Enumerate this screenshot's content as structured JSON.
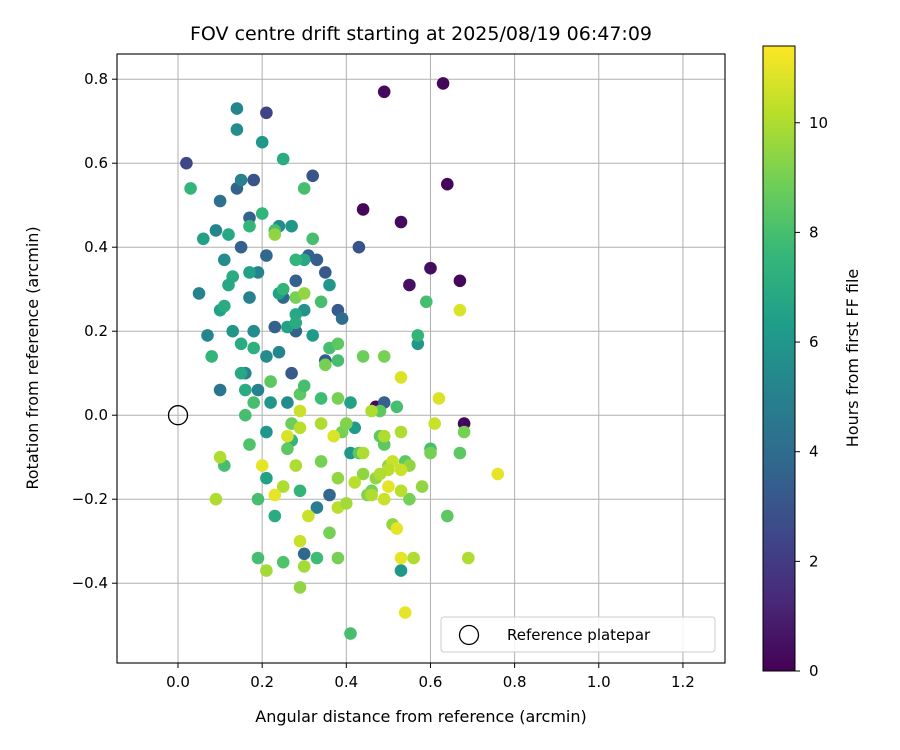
{
  "chart_data": {
    "type": "scatter",
    "title": "FOV centre drift starting at 2025/08/19 06:47:09",
    "xlabel": "Angular distance from reference (arcmin)",
    "ylabel": "Rotation from reference (arcmin)",
    "xlim": [
      -0.145,
      1.3
    ],
    "ylim": [
      -0.59,
      0.86
    ],
    "xticks": [
      0.0,
      0.2,
      0.4,
      0.6,
      0.8,
      1.0,
      1.2
    ],
    "xtick_labels": [
      "0.0",
      "0.2",
      "0.4",
      "0.6",
      "0.8",
      "1.0",
      "1.2"
    ],
    "yticks": [
      -0.4,
      -0.2,
      0.0,
      0.2,
      0.4,
      0.6,
      0.8
    ],
    "ytick_labels": [
      "−0.4",
      "−0.2",
      "0.0",
      "0.2",
      "0.4",
      "0.6",
      "0.8"
    ],
    "grid": true,
    "legend": {
      "placement": "lower-right",
      "entries": [
        "Reference platepar"
      ]
    },
    "colorbar": {
      "label": "Hours from first FF file",
      "colormap": "viridis",
      "range": [
        0,
        11.4
      ],
      "ticks": [
        0,
        2,
        4,
        6,
        8,
        10
      ],
      "tick_labels": [
        "0",
        "2",
        "4",
        "6",
        "8",
        "10"
      ]
    },
    "colormap_stops": [
      "#440154",
      "#482878",
      "#3e4989",
      "#31688e",
      "#26828e",
      "#1f9e89",
      "#35b779",
      "#6ece58",
      "#b5de2b",
      "#fde725"
    ],
    "reference_point": {
      "x": 0.0,
      "y": 0.0
    },
    "series": [
      {
        "points": [
          [
            0.63,
            0.79,
            0.2
          ],
          [
            0.49,
            0.77,
            0.3
          ],
          [
            0.64,
            0.55,
            0.2
          ],
          [
            0.44,
            0.49,
            0.2
          ],
          [
            0.53,
            0.46,
            0.3
          ],
          [
            0.6,
            0.35,
            0.4
          ],
          [
            0.67,
            0.32,
            0.2
          ],
          [
            0.55,
            0.31,
            0.5
          ],
          [
            0.68,
            -0.02,
            0.2
          ],
          [
            0.47,
            0.02,
            0.3
          ],
          [
            0.02,
            0.6,
            2.5
          ],
          [
            0.21,
            0.72,
            2.3
          ],
          [
            0.32,
            0.57,
            3.0
          ],
          [
            0.14,
            0.54,
            3.6
          ],
          [
            0.18,
            0.56,
            3.0
          ],
          [
            0.43,
            0.4,
            3.0
          ],
          [
            0.38,
            0.25,
            3.2
          ],
          [
            0.33,
            0.37,
            3.4
          ],
          [
            0.35,
            0.34,
            3.2
          ],
          [
            0.28,
            0.32,
            3.5
          ],
          [
            0.28,
            0.2,
            3.6
          ],
          [
            0.31,
            0.38,
            3.5
          ],
          [
            0.15,
            0.4,
            3.5
          ],
          [
            0.23,
            0.21,
            3.5
          ],
          [
            0.27,
            0.1,
            3.2
          ],
          [
            0.35,
            0.13,
            3.3
          ],
          [
            0.49,
            0.03,
            3.5
          ],
          [
            0.25,
            0.28,
            3.8
          ],
          [
            0.39,
            0.23,
            4.0
          ],
          [
            0.36,
            -0.19,
            3.8
          ],
          [
            0.27,
            -0.06,
            3.3
          ],
          [
            0.3,
            -0.33,
            3.8
          ],
          [
            0.17,
            0.47,
            3.5
          ],
          [
            0.21,
            0.38,
            3.8
          ],
          [
            0.1,
            0.51,
            4.2
          ],
          [
            0.33,
            -0.22,
            4.8
          ],
          [
            0.14,
            0.73,
            5.2
          ],
          [
            0.14,
            0.68,
            5.5
          ],
          [
            0.2,
            0.65,
            6.0
          ],
          [
            0.15,
            0.56,
            5.0
          ],
          [
            0.05,
            0.29,
            5.0
          ],
          [
            0.07,
            0.19,
            5.2
          ],
          [
            0.11,
            0.37,
            5.5
          ],
          [
            0.09,
            0.44,
            5.2
          ],
          [
            0.17,
            0.28,
            5.0
          ],
          [
            0.19,
            0.34,
            5.1
          ],
          [
            0.24,
            0.45,
            5.5
          ],
          [
            0.27,
            0.45,
            6.0
          ],
          [
            0.1,
            0.06,
            4.5
          ],
          [
            0.13,
            0.2,
            6.0
          ],
          [
            0.16,
            0.1,
            5.0
          ],
          [
            0.18,
            0.2,
            5.5
          ],
          [
            0.21,
            0.14,
            5.5
          ],
          [
            0.19,
            0.06,
            5.0
          ],
          [
            0.24,
            0.15,
            5.2
          ],
          [
            0.26,
            0.03,
            5.5
          ],
          [
            0.22,
            0.03,
            6.0
          ],
          [
            0.21,
            -0.04,
            6.0
          ],
          [
            0.21,
            -0.15,
            6.5
          ],
          [
            0.23,
            -0.24,
            7.0
          ],
          [
            0.53,
            -0.37,
            6.0
          ],
          [
            0.42,
            -0.03,
            6.2
          ],
          [
            0.41,
            -0.09,
            6.0
          ],
          [
            0.57,
            0.17,
            6.0
          ],
          [
            0.41,
            0.03,
            6.5
          ],
          [
            0.36,
            0.31,
            6.0
          ],
          [
            0.3,
            0.25,
            5.8
          ],
          [
            0.32,
            0.19,
            6.2
          ],
          [
            0.26,
            0.21,
            6.5
          ],
          [
            0.28,
            0.24,
            6.8
          ],
          [
            0.28,
            0.22,
            7.0
          ],
          [
            0.24,
            0.29,
            6.5
          ],
          [
            0.3,
            0.37,
            6.8
          ],
          [
            0.25,
            0.61,
            7.0
          ],
          [
            0.06,
            0.42,
            6.5
          ],
          [
            0.12,
            0.43,
            6.8
          ],
          [
            0.17,
            0.34,
            6.5
          ],
          [
            0.13,
            0.33,
            7.0
          ],
          [
            0.12,
            0.31,
            6.8
          ],
          [
            0.1,
            0.25,
            6.5
          ],
          [
            0.11,
            0.26,
            7.0
          ],
          [
            0.08,
            0.14,
            7.5
          ],
          [
            0.15,
            0.17,
            7.0
          ],
          [
            0.15,
            0.1,
            6.8
          ],
          [
            0.16,
            0.06,
            7.0
          ],
          [
            0.18,
            0.16,
            7.2
          ],
          [
            0.25,
            0.3,
            7.5
          ],
          [
            0.28,
            0.37,
            7.5
          ],
          [
            0.32,
            0.42,
            8.0
          ],
          [
            0.3,
            0.54,
            8.0
          ],
          [
            0.03,
            0.54,
            7.5
          ],
          [
            0.2,
            0.48,
            7.5
          ],
          [
            0.17,
            0.45,
            7.5
          ],
          [
            0.23,
            0.44,
            8.0
          ],
          [
            0.34,
            0.27,
            8.0
          ],
          [
            0.57,
            0.19,
            7.5
          ],
          [
            0.59,
            0.27,
            8.0
          ],
          [
            0.36,
            0.16,
            8.0
          ],
          [
            0.38,
            0.17,
            8.5
          ],
          [
            0.34,
            0.04,
            7.8
          ],
          [
            0.38,
            0.13,
            8.0
          ],
          [
            0.18,
            0.03,
            8.0
          ],
          [
            0.17,
            -0.07,
            8.2
          ],
          [
            0.16,
            0.0,
            8.0
          ],
          [
            0.22,
            0.08,
            8.5
          ],
          [
            0.11,
            -0.12,
            8.0
          ],
          [
            0.19,
            -0.2,
            8.0
          ],
          [
            0.19,
            -0.34,
            8.0
          ],
          [
            0.25,
            -0.35,
            8.2
          ],
          [
            0.27,
            -0.06,
            7.5
          ],
          [
            0.29,
            -0.18,
            7.5
          ],
          [
            0.33,
            -0.34,
            7.8
          ],
          [
            0.41,
            -0.52,
            8.0
          ],
          [
            0.52,
            0.02,
            8.0
          ],
          [
            0.48,
            0.01,
            8.5
          ],
          [
            0.48,
            -0.05,
            8.5
          ],
          [
            0.49,
            -0.07,
            8.5
          ],
          [
            0.6,
            -0.08,
            8.0
          ],
          [
            0.43,
            -0.09,
            8.5
          ],
          [
            0.54,
            -0.11,
            8.5
          ],
          [
            0.55,
            -0.2,
            9.0
          ],
          [
            0.36,
            -0.28,
            9.0
          ],
          [
            0.38,
            -0.34,
            9.0
          ],
          [
            0.46,
            -0.18,
            9.0
          ],
          [
            0.64,
            -0.24,
            8.5
          ],
          [
            0.67,
            -0.09,
            8.5
          ],
          [
            0.68,
            -0.04,
            9.0
          ],
          [
            0.6,
            -0.09,
            9.0
          ],
          [
            0.35,
            0.12,
            9.0
          ],
          [
            0.38,
            0.04,
            9.0
          ],
          [
            0.34,
            -0.11,
            9.0
          ],
          [
            0.39,
            -0.04,
            9.0
          ],
          [
            0.4,
            -0.02,
            9.2
          ],
          [
            0.44,
            -0.14,
            9.5
          ],
          [
            0.45,
            -0.19,
            9.2
          ],
          [
            0.47,
            -0.15,
            9.5
          ],
          [
            0.51,
            -0.26,
            9.5
          ],
          [
            0.5,
            -0.12,
            9.5
          ],
          [
            0.55,
            -0.12,
            9.5
          ],
          [
            0.58,
            -0.17,
            9.5
          ],
          [
            0.49,
            0.14,
            9.0
          ],
          [
            0.44,
            0.14,
            8.8
          ],
          [
            0.29,
            0.05,
            8.5
          ],
          [
            0.3,
            0.07,
            8.0
          ],
          [
            0.26,
            -0.08,
            8.5
          ],
          [
            0.27,
            -0.02,
            8.8
          ],
          [
            0.28,
            0.28,
            9.0
          ],
          [
            0.3,
            0.29,
            9.5
          ],
          [
            0.23,
            0.43,
            9.5
          ],
          [
            0.09,
            -0.2,
            10.0
          ],
          [
            0.1,
            -0.1,
            10.0
          ],
          [
            0.21,
            -0.37,
            9.8
          ],
          [
            0.28,
            -0.12,
            10.0
          ],
          [
            0.29,
            -0.3,
            10.5
          ],
          [
            0.31,
            -0.24,
            10.5
          ],
          [
            0.3,
            -0.36,
            9.8
          ],
          [
            0.29,
            -0.41,
            9.5
          ],
          [
            0.38,
            -0.22,
            10.2
          ],
          [
            0.37,
            -0.05,
            10.8
          ],
          [
            0.34,
            -0.02,
            10.0
          ],
          [
            0.25,
            -0.17,
            10.0
          ],
          [
            0.23,
            -0.19,
            11.0
          ],
          [
            0.2,
            -0.12,
            11.0
          ],
          [
            0.26,
            -0.05,
            10.8
          ],
          [
            0.29,
            0.01,
            10.5
          ],
          [
            0.29,
            -0.03,
            10.2
          ],
          [
            0.42,
            -0.16,
            10.2
          ],
          [
            0.46,
            0.01,
            10.0
          ],
          [
            0.49,
            -0.05,
            10.0
          ],
          [
            0.51,
            -0.11,
            10.5
          ],
          [
            0.53,
            -0.13,
            10.5
          ],
          [
            0.53,
            -0.04,
            10.0
          ],
          [
            0.53,
            -0.18,
            10.2
          ],
          [
            0.53,
            -0.34,
            11.0
          ],
          [
            0.52,
            -0.27,
            11.0
          ],
          [
            0.54,
            -0.47,
            11.0
          ],
          [
            0.5,
            -0.17,
            11.0
          ],
          [
            0.53,
            0.09,
            10.8
          ],
          [
            0.61,
            -0.02,
            10.5
          ],
          [
            0.62,
            0.04,
            10.8
          ],
          [
            0.67,
            0.25,
            10.8
          ],
          [
            0.69,
            -0.34,
            10.0
          ],
          [
            0.76,
            -0.14,
            11.0
          ],
          [
            0.56,
            -0.34,
            10.0
          ],
          [
            0.4,
            -0.21,
            9.8
          ],
          [
            0.38,
            -0.15,
            9.5
          ],
          [
            0.44,
            -0.09,
            10.0
          ],
          [
            0.46,
            -0.19,
            10.0
          ],
          [
            0.5,
            -0.13,
            10.2
          ],
          [
            0.48,
            -0.14,
            10.0
          ],
          [
            0.49,
            -0.2,
            10.5
          ]
        ]
      }
    ]
  }
}
